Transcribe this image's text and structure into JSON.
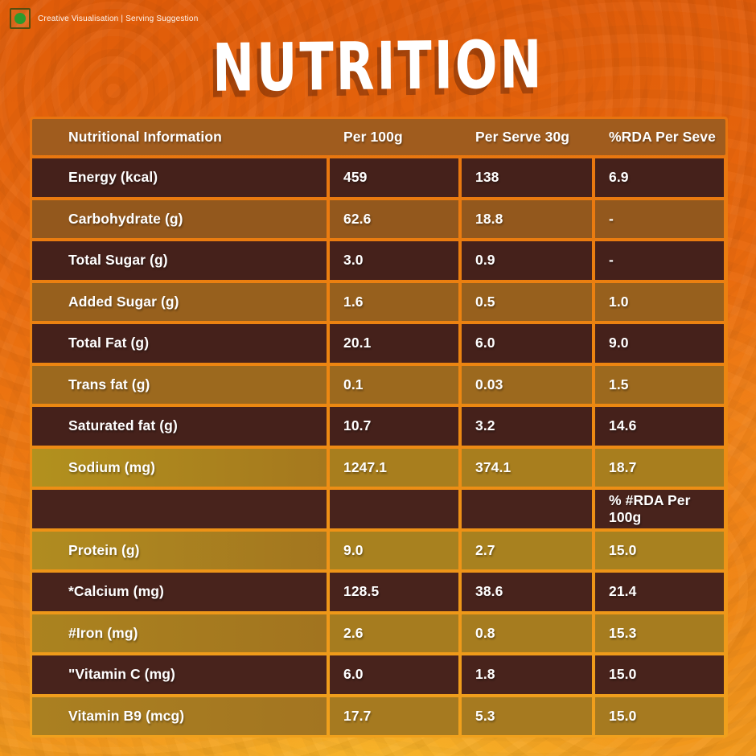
{
  "credit": {
    "veg_icon": "veg-mark-icon",
    "text": "Creative Visualisation | Serving Suggestion"
  },
  "title": "NUTRITION",
  "table": {
    "columns": [
      "Nutritional Information",
      "Per 100g",
      "Per Serve 30g",
      "%RDA Per Seve"
    ],
    "rows": [
      {
        "label": "Energy (kcal)",
        "per100g": "459",
        "serve30g": "138",
        "rda": "6.9"
      },
      {
        "label": "Carbohydrate (g)",
        "per100g": "62.6",
        "serve30g": "18.8",
        "rda": "-"
      },
      {
        "label": "Total Sugar (g)",
        "per100g": "3.0",
        "serve30g": "0.9",
        "rda": "-"
      },
      {
        "label": "Added Sugar (g)",
        "per100g": "1.6",
        "serve30g": "0.5",
        "rda": "1.0"
      },
      {
        "label": "Total Fat (g)",
        "per100g": "20.1",
        "serve30g": "6.0",
        "rda": "9.0"
      },
      {
        "label": "Trans fat (g)",
        "per100g": "0.1",
        "serve30g": "0.03",
        "rda": "1.5"
      },
      {
        "label": "Saturated fat (g)",
        "per100g": "10.7",
        "serve30g": "3.2",
        "rda": "14.6"
      },
      {
        "label": "Sodium (mg)",
        "per100g": "1247.1",
        "serve30g": "374.1",
        "rda": "18.7"
      },
      {
        "label": "",
        "per100g": "",
        "serve30g": "",
        "rda": "% #RDA Per 100g"
      },
      {
        "label": "Protein (g)",
        "per100g": "9.0",
        "serve30g": "2.7",
        "rda": "15.0"
      },
      {
        "label": "*Calcium (mg)",
        "per100g": "128.5",
        "serve30g": "38.6",
        "rda": "21.4"
      },
      {
        "label": "#Iron (mg)",
        "per100g": "2.6",
        "serve30g": "0.8",
        "rda": "15.3"
      },
      {
        "label": "\"Vitamin C (mg)",
        "per100g": "6.0",
        "serve30g": "1.8",
        "rda": "15.0"
      },
      {
        "label": "Vitamin B9 (mcg)",
        "per100g": "17.7",
        "serve30g": "5.3",
        "rda": "15.0"
      }
    ]
  },
  "colors": {
    "background_orange": "#e96a0e",
    "bottom_gold": "#f8b92c",
    "header_row": "#a05c1e",
    "dark_row": "#45211b",
    "light_row_top": "#93581d",
    "light_row_bottom": "#a67a20",
    "border_gold": "#f0a11d",
    "veg_green": "#2c9a2e",
    "text": "#ffffff"
  }
}
